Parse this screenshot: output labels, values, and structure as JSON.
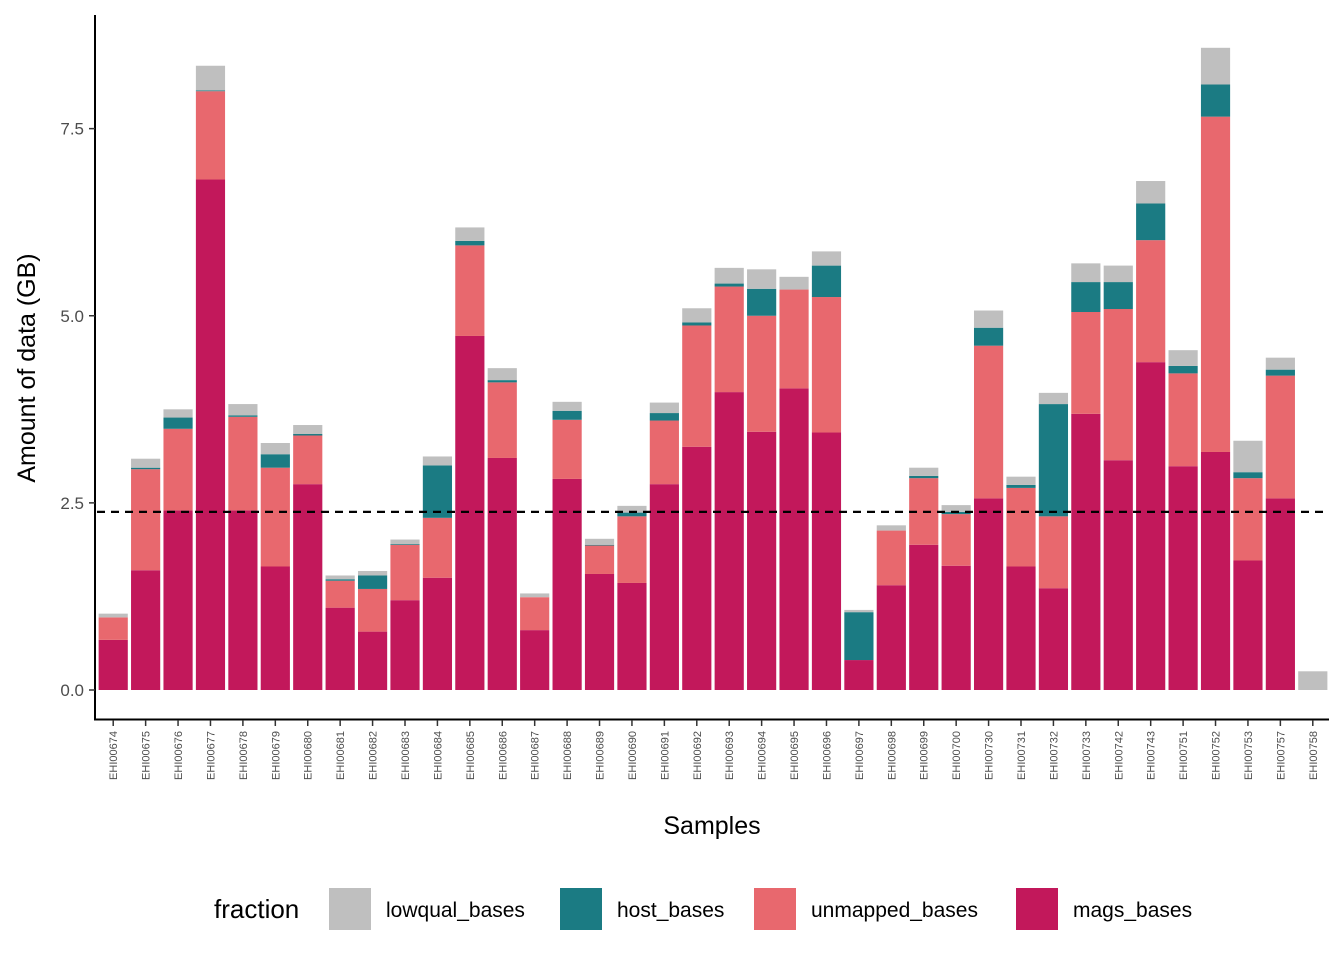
{
  "chart_data": {
    "type": "bar",
    "stacked": true,
    "title": "",
    "xlabel": "Samples",
    "ylabel": "Amount of data (GB)",
    "ylim": [
      0,
      8.9
    ],
    "yticks": [
      0.0,
      2.5,
      5.0,
      7.5
    ],
    "ytick_labels": [
      "0.0",
      "2.5",
      "5.0",
      "7.5"
    ],
    "reference_line": {
      "y": 2.38,
      "style": "dashed",
      "color": "#000000"
    },
    "grid": false,
    "legend": {
      "title": "fraction",
      "position": "bottom"
    },
    "categories": [
      "EHI00674",
      "EHI00675",
      "EHI00676",
      "EHI00677",
      "EHI00678",
      "EHI00679",
      "EHI00680",
      "EHI00681",
      "EHI00682",
      "EHI00683",
      "EHI00684",
      "EHI00685",
      "EHI00686",
      "EHI00687",
      "EHI00688",
      "EHI00689",
      "EHI00690",
      "EHI00691",
      "EHI00692",
      "EHI00693",
      "EHI00694",
      "EHI00695",
      "EHI00696",
      "EHI00697",
      "EHI00698",
      "EHI00699",
      "EHI00700",
      "EHI00730",
      "EHI00731",
      "EHI00732",
      "EHI00733",
      "EHI00742",
      "EHI00743",
      "EHI00751",
      "EHI00752",
      "EHI00753",
      "EHI00757",
      "EHI00758"
    ],
    "series": [
      {
        "name": "mags_bases",
        "color": "#C2185B",
        "values": [
          0.67,
          1.6,
          2.4,
          6.82,
          2.4,
          1.65,
          2.75,
          1.1,
          0.78,
          1.2,
          1.5,
          4.73,
          3.1,
          0.8,
          2.82,
          1.55,
          1.43,
          2.75,
          3.25,
          3.98,
          3.45,
          4.03,
          3.44,
          0.4,
          1.4,
          1.94,
          1.66,
          2.56,
          1.65,
          1.36,
          3.69,
          3.07,
          4.38,
          2.99,
          3.18,
          1.73,
          2.56,
          0.0
        ]
      },
      {
        "name": "unmapped_bases",
        "color": "#E8686E",
        "values": [
          0.3,
          1.35,
          1.09,
          1.18,
          1.25,
          1.32,
          0.65,
          0.36,
          0.57,
          0.74,
          0.8,
          1.21,
          1.01,
          0.44,
          0.79,
          0.38,
          0.89,
          0.85,
          1.62,
          1.41,
          1.55,
          1.32,
          1.81,
          0.0,
          0.73,
          0.89,
          0.69,
          2.04,
          1.05,
          0.96,
          1.36,
          2.02,
          1.63,
          1.24,
          4.48,
          1.1,
          1.64,
          0.0
        ]
      },
      {
        "name": "host_bases",
        "color": "#1B7B83",
        "values": [
          0.0,
          0.02,
          0.15,
          0.01,
          0.02,
          0.18,
          0.02,
          0.02,
          0.18,
          0.01,
          0.7,
          0.06,
          0.03,
          0.0,
          0.12,
          0.01,
          0.05,
          0.1,
          0.04,
          0.04,
          0.36,
          0.0,
          0.42,
          0.64,
          0.0,
          0.03,
          0.03,
          0.24,
          0.04,
          1.5,
          0.4,
          0.36,
          0.49,
          0.1,
          0.43,
          0.08,
          0.08,
          0.0
        ]
      },
      {
        "name": "lowqual_bases",
        "color": "#BFBFBF",
        "values": [
          0.05,
          0.12,
          0.11,
          0.33,
          0.15,
          0.15,
          0.12,
          0.05,
          0.06,
          0.06,
          0.12,
          0.18,
          0.16,
          0.05,
          0.12,
          0.08,
          0.09,
          0.14,
          0.19,
          0.21,
          0.26,
          0.17,
          0.19,
          0.03,
          0.07,
          0.11,
          0.09,
          0.23,
          0.11,
          0.15,
          0.25,
          0.22,
          0.3,
          0.21,
          0.49,
          0.42,
          0.16,
          0.25
        ]
      }
    ]
  }
}
